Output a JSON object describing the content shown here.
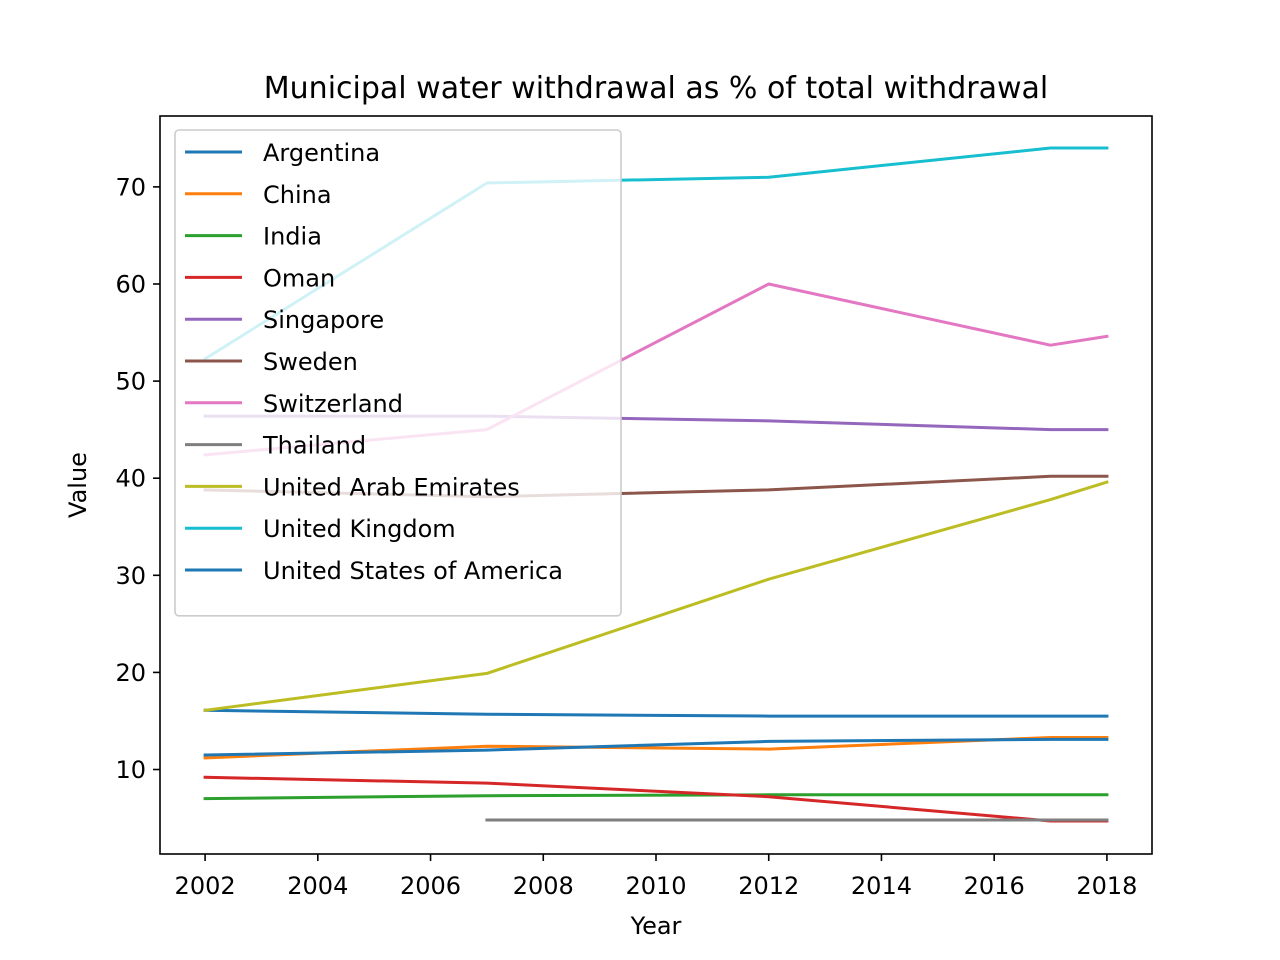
{
  "chart_data": {
    "type": "line",
    "title": "Municipal water withdrawal as % of total withdrawal",
    "xlabel": "Year",
    "ylabel": "Value",
    "xlim": [
      2001.2,
      2018.8
    ],
    "ylim": [
      1.3,
      77.3
    ],
    "x_ticks": [
      2002,
      2004,
      2006,
      2008,
      2010,
      2012,
      2014,
      2016,
      2018
    ],
    "y_ticks": [
      10,
      20,
      30,
      40,
      50,
      60,
      70
    ],
    "grid": false,
    "legend_position": "upper-left",
    "series": [
      {
        "name": "Argentina",
        "color": "#1f77b4",
        "x": [
          2002,
          2007,
          2012,
          2017,
          2018
        ],
        "y": [
          16.1,
          15.7,
          15.5,
          15.5,
          15.5
        ]
      },
      {
        "name": "China",
        "color": "#ff7f0e",
        "x": [
          2002,
          2007,
          2012,
          2017,
          2018
        ],
        "y": [
          11.2,
          12.4,
          12.1,
          13.3,
          13.3
        ]
      },
      {
        "name": "India",
        "color": "#2ca02c",
        "x": [
          2002,
          2007,
          2012,
          2017,
          2018
        ],
        "y": [
          7.0,
          7.3,
          7.4,
          7.4,
          7.4
        ]
      },
      {
        "name": "Oman",
        "color": "#d62728",
        "x": [
          2002,
          2007,
          2012,
          2017,
          2018
        ],
        "y": [
          9.2,
          8.6,
          7.2,
          4.7,
          4.7
        ]
      },
      {
        "name": "Singapore",
        "color": "#9467bd",
        "x": [
          2002,
          2007,
          2012,
          2017,
          2018
        ],
        "y": [
          46.4,
          46.4,
          45.9,
          45.0,
          45.0
        ]
      },
      {
        "name": "Sweden",
        "color": "#8c564b",
        "x": [
          2002,
          2007,
          2012,
          2017,
          2018
        ],
        "y": [
          38.8,
          38.1,
          38.8,
          40.2,
          40.2
        ]
      },
      {
        "name": "Switzerland",
        "color": "#e377c2",
        "x": [
          2002,
          2007,
          2012,
          2017,
          2018
        ],
        "y": [
          42.4,
          45.0,
          60.0,
          53.7,
          54.6
        ]
      },
      {
        "name": "Thailand",
        "color": "#7f7f7f",
        "x": [
          2007,
          2012,
          2017,
          2018
        ],
        "y": [
          4.8,
          4.8,
          4.8,
          4.8
        ]
      },
      {
        "name": "United Arab Emirates",
        "color": "#bcbd22",
        "x": [
          2002,
          2007,
          2012,
          2017,
          2018
        ],
        "y": [
          16.1,
          19.9,
          29.6,
          37.8,
          39.6
        ]
      },
      {
        "name": "United Kingdom",
        "color": "#17becf",
        "x": [
          2002,
          2007,
          2012,
          2017,
          2018
        ],
        "y": [
          52.3,
          70.4,
          71.0,
          74.0,
          74.0
        ]
      },
      {
        "name": "United States of America",
        "color": "#1f77b4",
        "x": [
          2002,
          2007,
          2012,
          2017,
          2018
        ],
        "y": [
          11.5,
          12.0,
          12.9,
          13.1,
          13.1
        ]
      }
    ]
  }
}
